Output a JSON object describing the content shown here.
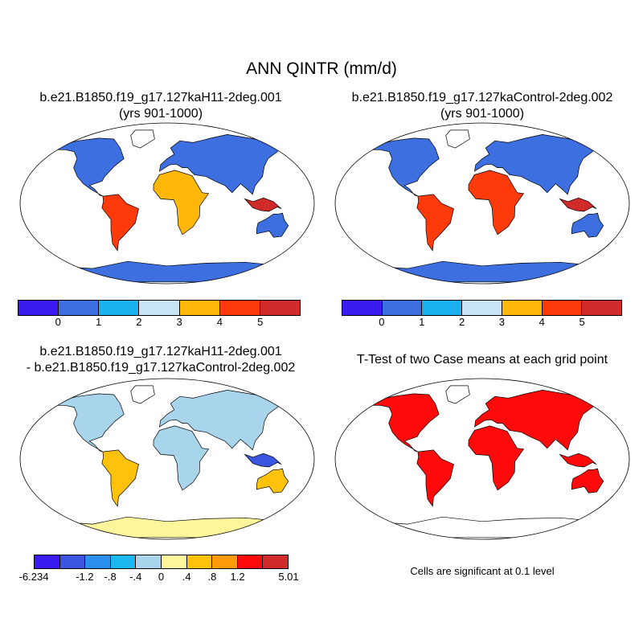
{
  "title": "ANN QINTR (mm/d)",
  "panels": {
    "top_left": {
      "line1": "b.e21.B1850.f19_g17.127kaH11-2deg.001",
      "line2": "(yrs 901-1000)"
    },
    "top_right": {
      "line1": "b.e21.B1850.f19_g17.127kaControl-2deg.002",
      "line2": "(yrs 901-1000)"
    },
    "bottom_left": {
      "line1": "b.e21.B1850.f19_g17.127kaH11-2deg.001",
      "line2": "- b.e21.B1850.f19_g17.127kaControl-2deg.002"
    },
    "bottom_right": {
      "line1": "T-Test of two Case means at each grid point"
    }
  },
  "colorbar_abs": {
    "colors": [
      "#3a1cf0",
      "#3d6fe0",
      "#1bb0f0",
      "#c8e4f4",
      "#ffb80a",
      "#ff3a0a",
      "#d12a2a"
    ],
    "labels": [
      "0",
      "1",
      "2",
      "3",
      "4",
      "5"
    ]
  },
  "colorbar_diff": {
    "colors": [
      "#3a1cf0",
      "#3b55e0",
      "#2b8ff0",
      "#1bb8f0",
      "#a8d4ec",
      "#fff59a",
      "#ffc20a",
      "#ff9a0a",
      "#ff0a0a",
      "#d12a2a"
    ],
    "labels": [
      "-6.234",
      "-1.2",
      "-.8",
      "-.4",
      "0",
      ".4",
      ".8",
      "1.2",
      "5.01"
    ]
  },
  "significance_note": "Cells are significant at 0.1 level",
  "palette": {
    "ocean": "#ffffff",
    "land_low": "#3d6fe0",
    "land_mid": "#1bb0f0",
    "land_high": "#d12a2a",
    "signif": "#ff0a0a"
  }
}
